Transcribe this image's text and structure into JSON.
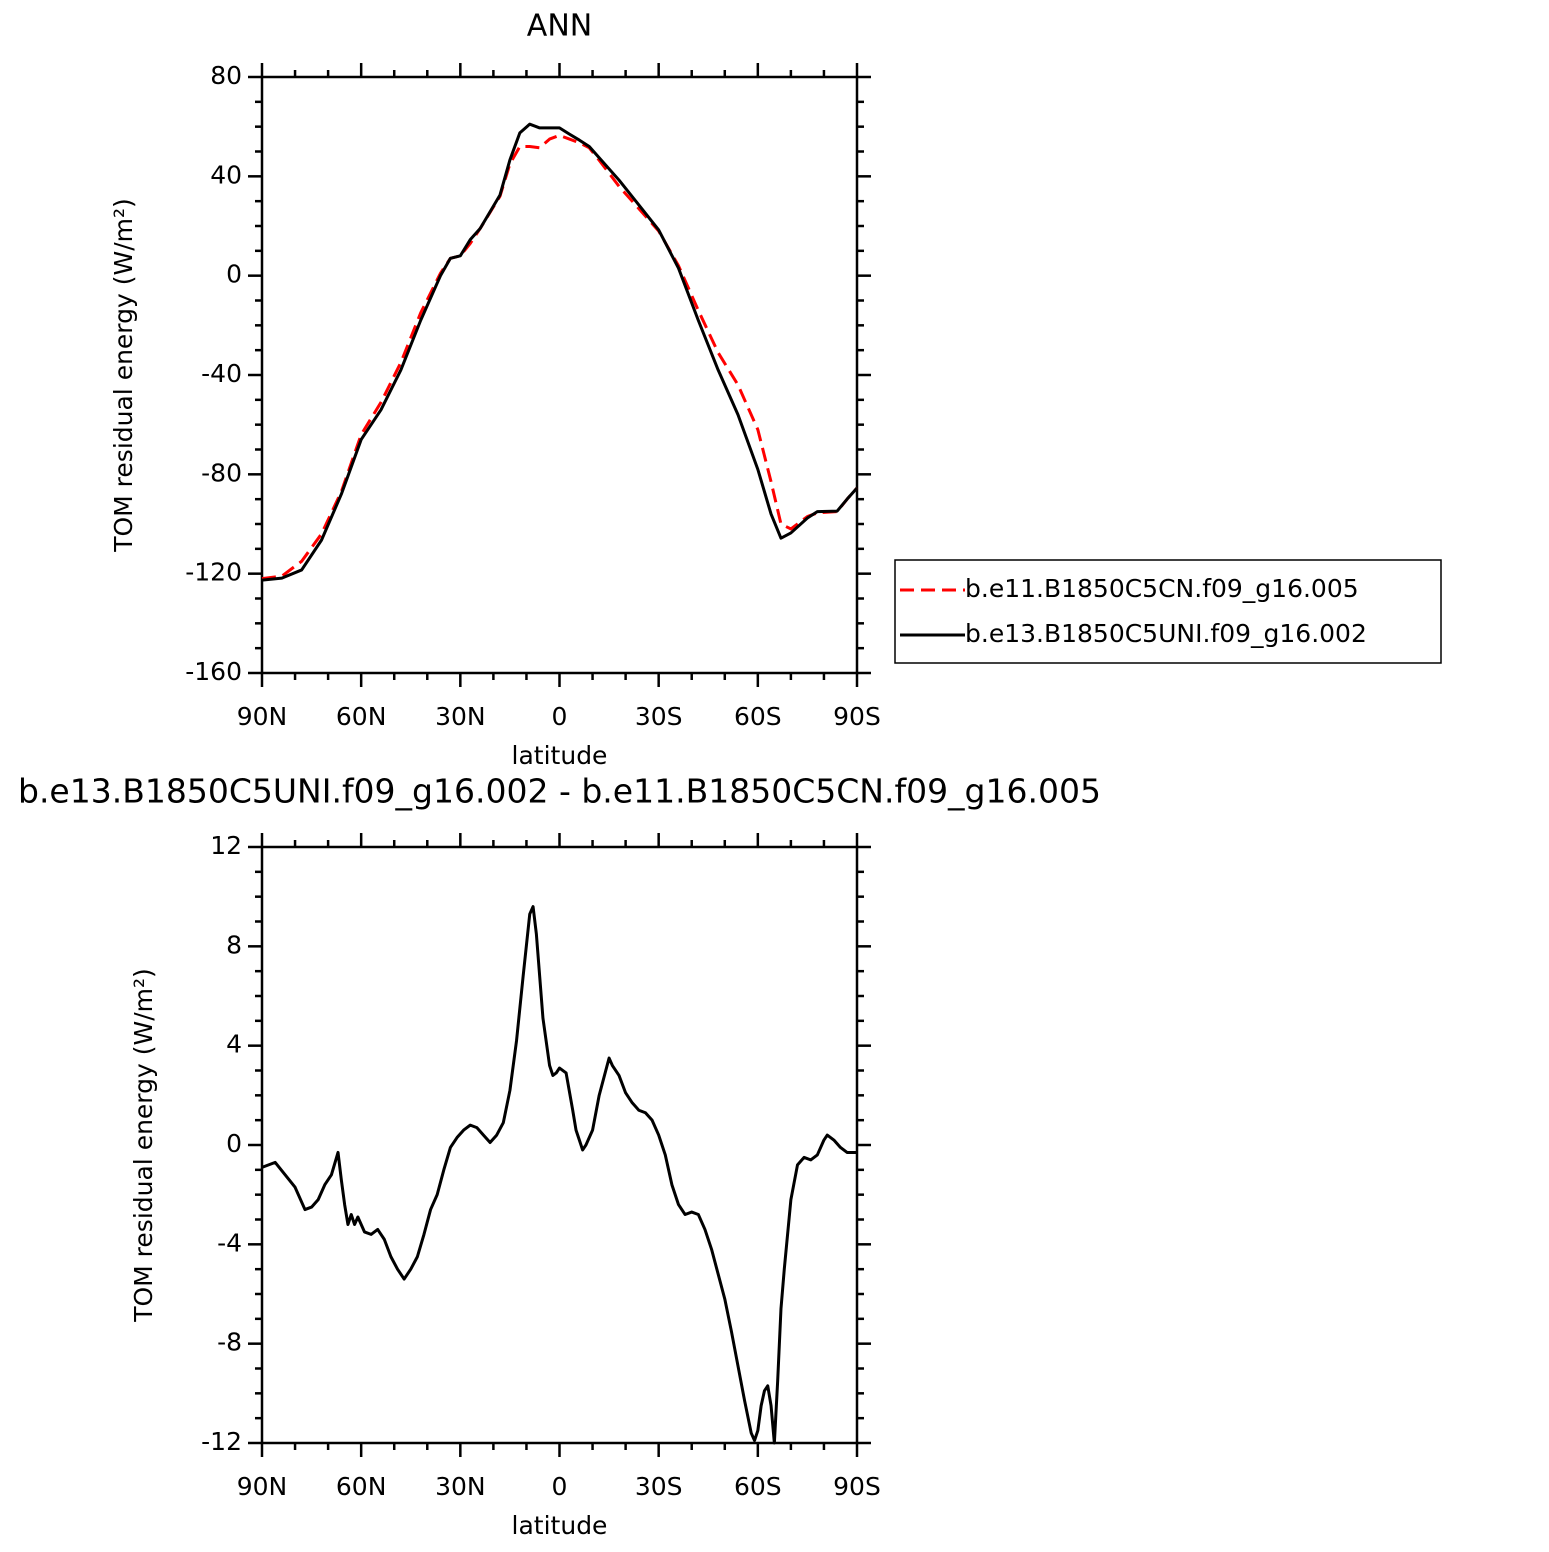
{
  "chart_data": [
    {
      "type": "line",
      "title": "ANN",
      "xlabel": "latitude",
      "ylabel": "TOM residual energy (W/m²)",
      "xlim": [
        90,
        -90
      ],
      "xticks": [
        {
          "value": 90,
          "label": "90N"
        },
        {
          "value": 60,
          "label": "60N"
        },
        {
          "value": 30,
          "label": "30N"
        },
        0,
        {
          "value": -30,
          "label": "30S"
        },
        {
          "value": -60,
          "label": "60S"
        },
        {
          "value": -90,
          "label": "90S"
        }
      ],
      "ylim": [
        -160,
        80
      ],
      "yticks": [
        -160,
        -120,
        -80,
        -40,
        0,
        40,
        80
      ],
      "legend": "right",
      "x": [
        90,
        84,
        78,
        72,
        66,
        60,
        54,
        48,
        42,
        36,
        33,
        30,
        27,
        24,
        18,
        15,
        12,
        9,
        6,
        3,
        0,
        -3,
        -6,
        -9,
        -12,
        -18,
        -24,
        -30,
        -36,
        -42,
        -48,
        -54,
        -60,
        -64,
        -67,
        -70,
        -75,
        -78,
        -84,
        -87,
        -90
      ],
      "series": [
        {
          "name": "b.e11.B1850C5CN.f09_g16.005",
          "color": "#ff0000",
          "dash": true,
          "values": [
            -122,
            -121,
            -115,
            -104,
            -87,
            -64,
            -51,
            -35,
            -15,
            1,
            7,
            8,
            13,
            19,
            32,
            45,
            52,
            52,
            51.5,
            55,
            56.5,
            55,
            53.5,
            51.5,
            46.5,
            36,
            27,
            18,
            4,
            -14,
            -31,
            -44,
            -62,
            -83,
            -100,
            -102,
            -97,
            -95.5,
            -95,
            -90,
            -85.5
          ]
        },
        {
          "name": "b.e13.B1850C5UNI.f09_g16.002",
          "color": "#000000",
          "dash": false,
          "values": [
            -122.6,
            -121.8,
            -118.5,
            -106.5,
            -88,
            -66,
            -54,
            -38,
            -18,
            0,
            7,
            8,
            14.5,
            19,
            32.5,
            46.6,
            57.5,
            61,
            59.5,
            59.5,
            59.5,
            57,
            54.6,
            52,
            47.5,
            38.5,
            28.5,
            18.4,
            3,
            -18,
            -38,
            -56,
            -78,
            -96,
            -105.7,
            -103.6,
            -97.6,
            -95,
            -94.8,
            -90,
            -85.5
          ]
        }
      ]
    },
    {
      "type": "line",
      "title": "b.e13.B1850C5UNI.f09_g16.002 - b.e11.B1850C5CN.f09_g16.005",
      "xlabel": "latitude",
      "ylabel": "TOM residual energy (W/m²)",
      "xlim": [
        90,
        -90
      ],
      "xticks": [
        {
          "value": 90,
          "label": "90N"
        },
        {
          "value": 60,
          "label": "60N"
        },
        {
          "value": 30,
          "label": "30N"
        },
        0,
        {
          "value": -30,
          "label": "30S"
        },
        {
          "value": -60,
          "label": "60S"
        },
        {
          "value": -90,
          "label": "90S"
        }
      ],
      "ylim": [
        -12,
        12
      ],
      "yticks": [
        -12,
        -8,
        -4,
        0,
        4,
        8,
        12
      ],
      "x": [
        90,
        86,
        83,
        80,
        77,
        75,
        73,
        71,
        69,
        67,
        66,
        65,
        64,
        63,
        62,
        61,
        59,
        57,
        55,
        53,
        51,
        49,
        47,
        45,
        43,
        41,
        39,
        37,
        35,
        33,
        31,
        29,
        27,
        25,
        23,
        21,
        19,
        17,
        15,
        13,
        11,
        9,
        8,
        7,
        5,
        3,
        2,
        1,
        0,
        -2,
        -4,
        -5,
        -6,
        -7,
        -8,
        -10,
        -12,
        -14,
        -15,
        -16,
        -18,
        -20,
        -22,
        -24,
        -26,
        -28,
        -30,
        -32,
        -34,
        -36,
        -38,
        -40,
        -42,
        -44,
        -46,
        -48,
        -50,
        -52,
        -54,
        -56,
        -58,
        -59,
        -60,
        -61,
        -62,
        -63,
        -64,
        -65,
        -66,
        -67,
        -68,
        -70,
        -72,
        -74,
        -76,
        -78,
        -80,
        -81,
        -83,
        -85,
        -87,
        -90
      ],
      "series": [
        {
          "color": "#000000",
          "dash": false,
          "values": [
            -0.9,
            -0.7,
            -1.2,
            -1.7,
            -2.6,
            -2.5,
            -2.2,
            -1.6,
            -1.2,
            -0.3,
            -1.4,
            -2.4,
            -3.2,
            -2.8,
            -3.2,
            -2.9,
            -3.5,
            -3.6,
            -3.4,
            -3.8,
            -4.5,
            -5,
            -5.4,
            -5,
            -4.5,
            -3.6,
            -2.6,
            -2.0,
            -1.0,
            -0.1,
            0.3,
            0.6,
            0.8,
            0.7,
            0.4,
            0.1,
            0.4,
            0.9,
            2.2,
            4.2,
            6.8,
            9.3,
            9.6,
            8.5,
            5.1,
            3.2,
            2.8,
            2.9,
            3.1,
            2.9,
            1.4,
            0.6,
            0.2,
            -0.2,
            0,
            0.6,
            2.0,
            3.0,
            3.5,
            3.2,
            2.8,
            2.1,
            1.7,
            1.4,
            1.3,
            1.0,
            0.4,
            -0.4,
            -1.6,
            -2.4,
            -2.8,
            -2.7,
            -2.8,
            -3.4,
            -4.2,
            -5.2,
            -6.2,
            -7.5,
            -8.9,
            -10.3,
            -11.6,
            -11.9,
            -11.5,
            -10.5,
            -9.9,
            -9.7,
            -10.5,
            -12,
            -9.5,
            -6.6,
            -5,
            -2.2,
            -0.8,
            -0.5,
            -0.6,
            -0.4,
            0.2,
            0.4,
            0.2,
            -0.1,
            -0.3,
            -0.3
          ]
        }
      ]
    }
  ]
}
